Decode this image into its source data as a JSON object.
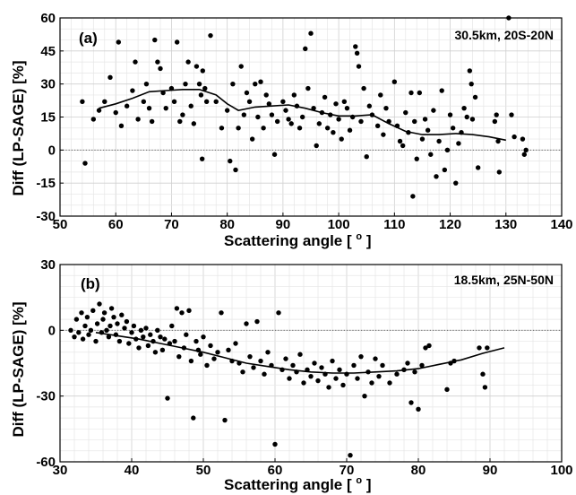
{
  "chart_data": [
    {
      "panel": "(a)",
      "type": "scatter",
      "annotation": "30.5km, 20S-20N",
      "xlabel": "Scattering angle [",
      "xlabel_degree": "o",
      "xlabel_close": "]",
      "ylabel": "Diff (LP-SAGE) [%]",
      "xlim": [
        50,
        140
      ],
      "ylim": [
        -30,
        60
      ],
      "xticks": [
        50,
        60,
        70,
        80,
        90,
        100,
        110,
        120,
        130,
        140
      ],
      "yticks": [
        -30,
        -15,
        0,
        15,
        30,
        45,
        60
      ],
      "xtick_labels": [
        "50",
        "60",
        "70",
        "80",
        "90",
        "100",
        "110",
        "120",
        "130",
        "140"
      ],
      "ytick_labels": [
        "-30",
        "-15",
        "0",
        "15",
        "30",
        "45",
        "60"
      ],
      "grid": true,
      "zero_line": true,
      "points": [
        [
          54.0,
          22
        ],
        [
          54.5,
          -6
        ],
        [
          56,
          14
        ],
        [
          57,
          18
        ],
        [
          58,
          22
        ],
        [
          59,
          33
        ],
        [
          60,
          17
        ],
        [
          60.5,
          49
        ],
        [
          61,
          11
        ],
        [
          62,
          20
        ],
        [
          63,
          27
        ],
        [
          63.5,
          40
        ],
        [
          64,
          14
        ],
        [
          65,
          22
        ],
        [
          65.5,
          30
        ],
        [
          66,
          19
        ],
        [
          66.5,
          13
        ],
        [
          67,
          50
        ],
        [
          67.5,
          40
        ],
        [
          68,
          37
        ],
        [
          68.5,
          26
        ],
        [
          69,
          19
        ],
        [
          70,
          28
        ],
        [
          70.5,
          22
        ],
        [
          71,
          49
        ],
        [
          71.5,
          13
        ],
        [
          72,
          16
        ],
        [
          72.5,
          30
        ],
        [
          73,
          40
        ],
        [
          73.5,
          20
        ],
        [
          74,
          12
        ],
        [
          74.5,
          38
        ],
        [
          75,
          30
        ],
        [
          75.3,
          25
        ],
        [
          75.6,
          36
        ],
        [
          76,
          28
        ],
        [
          76.3,
          22
        ],
        [
          77,
          52
        ],
        [
          75.5,
          -4
        ],
        [
          78,
          22
        ],
        [
          79,
          10
        ],
        [
          80,
          18
        ],
        [
          80.5,
          -5
        ],
        [
          81,
          30
        ],
        [
          81.5,
          -9
        ],
        [
          82,
          10
        ],
        [
          82.5,
          38
        ],
        [
          83,
          16
        ],
        [
          83.5,
          26
        ],
        [
          84,
          22
        ],
        [
          84.5,
          5
        ],
        [
          85,
          30
        ],
        [
          85.5,
          15
        ],
        [
          86,
          31
        ],
        [
          86.5,
          10
        ],
        [
          87,
          25
        ],
        [
          87.5,
          21
        ],
        [
          88,
          16
        ],
        [
          88.5,
          -2
        ],
        [
          89,
          13
        ],
        [
          90,
          22
        ],
        [
          90.5,
          18
        ],
        [
          91,
          14
        ],
        [
          91.5,
          12
        ],
        [
          92,
          25
        ],
        [
          92.5,
          20
        ],
        [
          93,
          10
        ],
        [
          93.5,
          15
        ],
        [
          94,
          46
        ],
        [
          94.5,
          28
        ],
        [
          95,
          53
        ],
        [
          95.5,
          19
        ],
        [
          96,
          2
        ],
        [
          96.5,
          12
        ],
        [
          97,
          17
        ],
        [
          97.5,
          24
        ],
        [
          98,
          10
        ],
        [
          98.5,
          16
        ],
        [
          99,
          8
        ],
        [
          99.5,
          21
        ],
        [
          100,
          14
        ],
        [
          100.5,
          5
        ],
        [
          101,
          22
        ],
        [
          101.5,
          19
        ],
        [
          102,
          9
        ],
        [
          102.5,
          15
        ],
        [
          103,
          47
        ],
        [
          103.3,
          44
        ],
        [
          103.6,
          38
        ],
        [
          104,
          13
        ],
        [
          104.5,
          28
        ],
        [
          105,
          -3
        ],
        [
          105.5,
          20
        ],
        [
          106,
          16
        ],
        [
          107,
          11
        ],
        [
          107.5,
          25
        ],
        [
          108,
          7
        ],
        [
          108.5,
          19
        ],
        [
          109,
          13
        ],
        [
          110,
          31
        ],
        [
          110.5,
          11
        ],
        [
          111,
          4
        ],
        [
          111.5,
          2
        ],
        [
          112,
          17
        ],
        [
          112.5,
          8
        ],
        [
          113,
          26
        ],
        [
          113.3,
          -21
        ],
        [
          113.6,
          13
        ],
        [
          114,
          -4
        ],
        [
          114.5,
          26
        ],
        [
          115,
          5
        ],
        [
          115.5,
          14
        ],
        [
          116,
          9
        ],
        [
          116.5,
          -2
        ],
        [
          117,
          18
        ],
        [
          117.5,
          -12
        ],
        [
          118,
          4
        ],
        [
          118.5,
          27
        ],
        [
          119,
          -9
        ],
        [
          119.5,
          0
        ],
        [
          120,
          16
        ],
        [
          120.5,
          10
        ],
        [
          121,
          -15
        ],
        [
          121.5,
          3
        ],
        [
          122,
          8
        ],
        [
          122.5,
          19
        ],
        [
          123,
          15
        ],
        [
          123.5,
          36
        ],
        [
          123.8,
          30
        ],
        [
          124,
          14
        ],
        [
          124.5,
          24
        ],
        [
          125,
          -8
        ],
        [
          128,
          13
        ],
        [
          128.3,
          16
        ],
        [
          128.6,
          4
        ],
        [
          128.8,
          -10
        ],
        [
          130.5,
          60
        ],
        [
          131,
          16
        ],
        [
          131.5,
          6
        ],
        [
          133,
          5
        ],
        [
          133.3,
          -2
        ],
        [
          133.6,
          0
        ]
      ],
      "fit": [
        [
          57,
          19
        ],
        [
          60,
          21
        ],
        [
          63,
          23.5
        ],
        [
          66,
          26.5
        ],
        [
          69,
          27
        ],
        [
          72,
          27.5
        ],
        [
          75,
          27.5
        ],
        [
          78,
          25
        ],
        [
          80,
          21
        ],
        [
          82,
          18
        ],
        [
          85,
          19.5
        ],
        [
          88,
          20
        ],
        [
          91,
          20.5
        ],
        [
          94,
          19
        ],
        [
          97,
          17
        ],
        [
          100,
          15.5
        ],
        [
          103,
          15.5
        ],
        [
          106,
          16
        ],
        [
          109,
          12
        ],
        [
          112,
          8.5
        ],
        [
          115,
          7
        ],
        [
          118,
          7
        ],
        [
          121,
          7.5
        ],
        [
          124,
          7
        ],
        [
          127,
          6
        ],
        [
          130,
          4.5
        ]
      ]
    },
    {
      "panel": "(b)",
      "type": "scatter",
      "annotation": "18.5km, 25N-50N",
      "xlabel": "Scattering angle [",
      "xlabel_degree": "o",
      "xlabel_close": "]",
      "ylabel": "Diff (LP-SAGE) [%]",
      "xlim": [
        30,
        100
      ],
      "ylim": [
        -60,
        30
      ],
      "xticks": [
        30,
        40,
        50,
        60,
        70,
        80,
        90,
        100
      ],
      "yticks": [
        -60,
        -30,
        0,
        30
      ],
      "xtick_labels": [
        "30",
        "40",
        "50",
        "60",
        "70",
        "80",
        "90",
        "100"
      ],
      "ytick_labels": [
        "-60",
        "-30",
        "0",
        "30"
      ],
      "grid": true,
      "zero_line": true,
      "points": [
        [
          31.5,
          0
        ],
        [
          32,
          -3
        ],
        [
          32.3,
          5
        ],
        [
          32.6,
          -1
        ],
        [
          33,
          8
        ],
        [
          33.2,
          -4
        ],
        [
          33.5,
          2
        ],
        [
          33.8,
          6
        ],
        [
          34,
          -2
        ],
        [
          34.3,
          0
        ],
        [
          34.6,
          9
        ],
        [
          35,
          -5
        ],
        [
          35.2,
          3
        ],
        [
          35.5,
          12
        ],
        [
          35.8,
          -1
        ],
        [
          36,
          5
        ],
        [
          36.2,
          8
        ],
        [
          36.5,
          0
        ],
        [
          36.8,
          -3
        ],
        [
          37,
          2
        ],
        [
          37.2,
          10
        ],
        [
          37.5,
          6
        ],
        [
          37.8,
          -2
        ],
        [
          38,
          3
        ],
        [
          38.3,
          -5
        ],
        [
          38.6,
          7
        ],
        [
          39,
          1
        ],
        [
          39.3,
          4
        ],
        [
          39.6,
          -6
        ],
        [
          40,
          -1
        ],
        [
          40.3,
          2
        ],
        [
          40.6,
          -4
        ],
        [
          41,
          -8
        ],
        [
          41.3,
          0
        ],
        [
          41.6,
          -3
        ],
        [
          42,
          1
        ],
        [
          42.3,
          -7
        ],
        [
          42.6,
          -2
        ],
        [
          43,
          -5
        ],
        [
          43.3,
          -10
        ],
        [
          43.6,
          0
        ],
        [
          44,
          -3
        ],
        [
          44.3,
          -9
        ],
        [
          44.6,
          -4
        ],
        [
          45,
          -31
        ],
        [
          45.3,
          -6
        ],
        [
          45.6,
          2
        ],
        [
          46,
          -5
        ],
        [
          46.3,
          10
        ],
        [
          46.6,
          -12
        ],
        [
          47,
          8
        ],
        [
          47.3,
          -8
        ],
        [
          47.6,
          -2
        ],
        [
          48,
          9
        ],
        [
          48.3,
          -14
        ],
        [
          48.6,
          -40
        ],
        [
          49,
          -5
        ],
        [
          49.3,
          -9
        ],
        [
          49.6,
          -11
        ],
        [
          50,
          -3
        ],
        [
          50.5,
          -16
        ],
        [
          51,
          -7
        ],
        [
          51.5,
          -13
        ],
        [
          52,
          -10
        ],
        [
          52.5,
          8
        ],
        [
          53,
          -41
        ],
        [
          53.5,
          -9
        ],
        [
          54,
          -14
        ],
        [
          54.5,
          -6
        ],
        [
          55,
          -15
        ],
        [
          55.5,
          -19
        ],
        [
          56,
          3
        ],
        [
          56.5,
          -12
        ],
        [
          57,
          -17
        ],
        [
          57.5,
          4
        ],
        [
          58,
          -14
        ],
        [
          58.5,
          -20
        ],
        [
          59,
          -10
        ],
        [
          59.5,
          -16
        ],
        [
          60,
          -52
        ],
        [
          60.5,
          8
        ],
        [
          61,
          -18
        ],
        [
          61.5,
          -13
        ],
        [
          62,
          -22
        ],
        [
          62.5,
          -16
        ],
        [
          63,
          -19
        ],
        [
          63.5,
          -11
        ],
        [
          64,
          -24
        ],
        [
          64.5,
          -18
        ],
        [
          65,
          -21
        ],
        [
          65.5,
          -15
        ],
        [
          66,
          -23
        ],
        [
          66.5,
          -17
        ],
        [
          67,
          -20
        ],
        [
          67.5,
          -26
        ],
        [
          68,
          -14
        ],
        [
          68.5,
          -22
        ],
        [
          69,
          -18
        ],
        [
          69.5,
          -25
        ],
        [
          70,
          -20
        ],
        [
          70.5,
          -57
        ],
        [
          71,
          -16
        ],
        [
          71.5,
          -22
        ],
        [
          72,
          -12
        ],
        [
          72.5,
          -30
        ],
        [
          73,
          -19
        ],
        [
          73.5,
          -24
        ],
        [
          74,
          -13
        ],
        [
          74.5,
          -21
        ],
        [
          75,
          -16
        ],
        [
          76,
          -24
        ],
        [
          77,
          -20
        ],
        [
          78,
          -18
        ],
        [
          78.5,
          -15
        ],
        [
          79,
          -33
        ],
        [
          79.5,
          -19
        ],
        [
          80,
          -36
        ],
        [
          80.5,
          -16
        ],
        [
          81,
          -8
        ],
        [
          81.5,
          -7
        ],
        [
          84,
          -27
        ],
        [
          84.5,
          -15
        ],
        [
          85,
          -14
        ],
        [
          88.5,
          -8
        ],
        [
          89,
          -20
        ],
        [
          89.3,
          -26
        ],
        [
          89.6,
          -8
        ]
      ],
      "fit": [
        [
          35,
          -1
        ],
        [
          38,
          -2.5
        ],
        [
          41,
          -4
        ],
        [
          44,
          -6
        ],
        [
          47,
          -8
        ],
        [
          50,
          -10
        ],
        [
          53,
          -12.5
        ],
        [
          56,
          -15
        ],
        [
          59,
          -16.5
        ],
        [
          62,
          -18
        ],
        [
          65,
          -19
        ],
        [
          68,
          -19.5
        ],
        [
          71,
          -19.5
        ],
        [
          74,
          -19
        ],
        [
          77,
          -18.5
        ],
        [
          80,
          -17.5
        ],
        [
          83,
          -15.5
        ],
        [
          86,
          -13.5
        ],
        [
          89,
          -10.5
        ],
        [
          92,
          -8
        ]
      ]
    }
  ]
}
